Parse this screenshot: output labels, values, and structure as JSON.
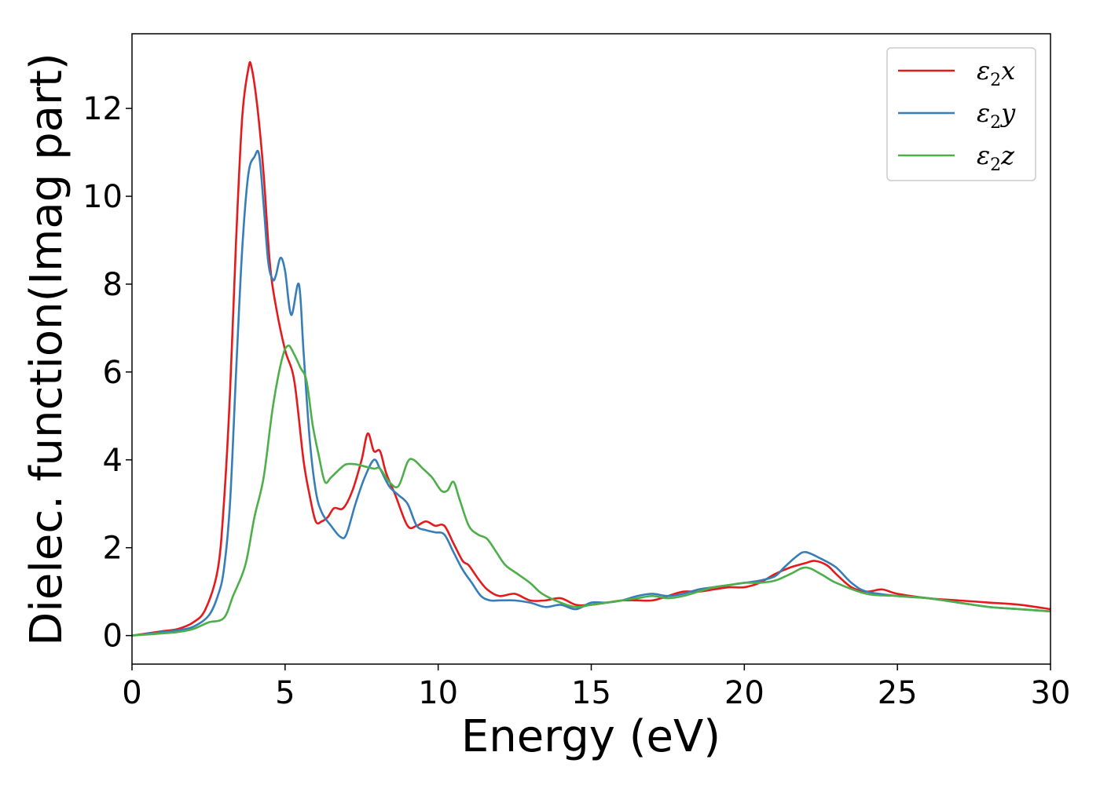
{
  "chart_data": {
    "type": "line",
    "xlabel": "Energy (eV)",
    "ylabel": "Dielec. function(Imag part)",
    "xlim": [
      0,
      30
    ],
    "ylim": [
      -0.65,
      13.7
    ],
    "xticks": [
      0,
      5,
      10,
      15,
      20,
      25,
      30
    ],
    "yticks": [
      0,
      2,
      4,
      6,
      8,
      10,
      12
    ],
    "xtick_labels": [
      "0",
      "5",
      "10",
      "15",
      "20",
      "25",
      "30"
    ],
    "ytick_labels": [
      "0",
      "2",
      "4",
      "6",
      "8",
      "10",
      "12"
    ],
    "grid": false,
    "legend_position": "top-right",
    "series": [
      {
        "name": "ε2x",
        "symbol": "ε",
        "sub": "2",
        "axis": "x",
        "color": "#e41a1c",
        "x": [
          0,
          1,
          1.5,
          2,
          2.4,
          2.8,
          3.0,
          3.2,
          3.4,
          3.6,
          3.8,
          3.9,
          4.1,
          4.3,
          4.5,
          4.7,
          5.0,
          5.3,
          5.6,
          5.8,
          6.0,
          6.2,
          6.4,
          6.6,
          6.9,
          7.2,
          7.5,
          7.7,
          7.9,
          8.1,
          8.3,
          8.6,
          9.0,
          9.3,
          9.6,
          9.9,
          10.2,
          10.5,
          10.8,
          11.0,
          11.3,
          11.6,
          12.0,
          12.5,
          13.0,
          13.5,
          14.0,
          14.5,
          15.0,
          15.5,
          16.0,
          16.5,
          17.0,
          17.5,
          18.0,
          18.5,
          19.0,
          19.5,
          20.0,
          20.5,
          21.0,
          21.5,
          22.0,
          22.3,
          22.7,
          23.0,
          23.5,
          24.0,
          24.5,
          25.0,
          26.0,
          27.0,
          28.0,
          29.0,
          30.0
        ],
        "values": [
          0,
          0.1,
          0.15,
          0.3,
          0.6,
          1.5,
          3.0,
          5.5,
          9.0,
          11.8,
          12.9,
          12.95,
          12.0,
          10.5,
          8.5,
          7.5,
          6.5,
          5.8,
          4.0,
          3.2,
          2.6,
          2.6,
          2.7,
          2.9,
          2.9,
          3.3,
          4.0,
          4.6,
          4.2,
          4.2,
          3.7,
          3.2,
          2.5,
          2.5,
          2.6,
          2.5,
          2.5,
          2.1,
          1.7,
          1.6,
          1.3,
          1.05,
          0.9,
          0.95,
          0.8,
          0.8,
          0.85,
          0.7,
          0.7,
          0.75,
          0.8,
          0.8,
          0.8,
          0.9,
          1.0,
          1.0,
          1.05,
          1.1,
          1.1,
          1.2,
          1.4,
          1.55,
          1.65,
          1.7,
          1.6,
          1.4,
          1.1,
          1.0,
          1.05,
          0.95,
          0.85,
          0.8,
          0.75,
          0.7,
          0.6
        ]
      },
      {
        "name": "ε2y",
        "symbol": "ε",
        "sub": "2",
        "axis": "y",
        "color": "#377eb8",
        "x": [
          0,
          1,
          1.5,
          2,
          2.5,
          2.8,
          3.0,
          3.2,
          3.4,
          3.6,
          3.8,
          4.0,
          4.15,
          4.3,
          4.45,
          4.6,
          4.7,
          4.85,
          5.0,
          5.2,
          5.45,
          5.6,
          5.8,
          6.0,
          6.2,
          6.5,
          6.8,
          7.0,
          7.3,
          7.6,
          7.9,
          8.1,
          8.4,
          8.7,
          9.0,
          9.3,
          9.6,
          9.9,
          10.2,
          10.5,
          10.8,
          11.1,
          11.4,
          11.7,
          12.0,
          12.5,
          13.0,
          13.5,
          14.0,
          14.5,
          15.0,
          15.5,
          16.0,
          16.5,
          17.0,
          17.5,
          18.0,
          18.5,
          19.0,
          19.5,
          20.0,
          20.5,
          21.0,
          21.3,
          21.7,
          22.0,
          22.5,
          23.0,
          23.5,
          24.0,
          25.0,
          26.0,
          27.0,
          28.0,
          29.0,
          30.0
        ],
        "values": [
          0,
          0.08,
          0.12,
          0.2,
          0.45,
          0.9,
          1.5,
          3.0,
          6.0,
          8.8,
          10.5,
          10.9,
          10.95,
          9.8,
          8.5,
          8.1,
          8.2,
          8.6,
          8.3,
          7.3,
          8.0,
          6.5,
          4.5,
          3.3,
          2.8,
          2.5,
          2.25,
          2.3,
          3.0,
          3.6,
          4.0,
          3.8,
          3.4,
          3.2,
          3.0,
          2.5,
          2.4,
          2.35,
          2.3,
          1.9,
          1.5,
          1.2,
          0.9,
          0.8,
          0.8,
          0.8,
          0.75,
          0.65,
          0.7,
          0.6,
          0.75,
          0.75,
          0.8,
          0.9,
          0.95,
          0.9,
          0.95,
          1.05,
          1.1,
          1.15,
          1.2,
          1.25,
          1.35,
          1.55,
          1.8,
          1.9,
          1.75,
          1.55,
          1.2,
          1.0,
          0.9,
          0.85,
          0.75,
          0.65,
          0.6,
          0.55
        ]
      },
      {
        "name": "ε2z",
        "symbol": "ε",
        "sub": "2",
        "axis": "z",
        "color": "#4daf4a",
        "x": [
          0,
          1,
          1.5,
          2,
          2.5,
          3.0,
          3.3,
          3.7,
          4.0,
          4.3,
          4.6,
          4.9,
          5.1,
          5.3,
          5.5,
          5.7,
          5.9,
          6.1,
          6.3,
          6.5,
          6.8,
          7.0,
          7.3,
          7.6,
          7.9,
          8.1,
          8.4,
          8.7,
          9.0,
          9.2,
          9.5,
          9.8,
          10.1,
          10.3,
          10.5,
          10.7,
          11.0,
          11.3,
          11.6,
          11.9,
          12.2,
          12.6,
          13.0,
          13.4,
          14.0,
          14.5,
          15.0,
          15.5,
          16.0,
          16.5,
          17.0,
          17.5,
          18.0,
          18.5,
          19.0,
          19.5,
          20.0,
          20.5,
          21.0,
          21.5,
          22.0,
          22.5,
          23.0,
          24.0,
          25.0,
          26.0,
          27.0,
          28.0,
          29.0,
          30.0
        ],
        "values": [
          0,
          0.05,
          0.08,
          0.15,
          0.3,
          0.4,
          0.9,
          1.6,
          2.7,
          3.6,
          5.2,
          6.3,
          6.6,
          6.4,
          6.1,
          5.8,
          4.8,
          4.1,
          3.5,
          3.6,
          3.8,
          3.9,
          3.9,
          3.85,
          3.8,
          3.8,
          3.5,
          3.4,
          3.95,
          4.0,
          3.8,
          3.6,
          3.3,
          3.3,
          3.5,
          3.1,
          2.5,
          2.3,
          2.2,
          1.9,
          1.6,
          1.4,
          1.2,
          0.95,
          0.75,
          0.65,
          0.7,
          0.75,
          0.8,
          0.85,
          0.9,
          0.85,
          0.9,
          1.0,
          1.1,
          1.15,
          1.2,
          1.2,
          1.25,
          1.4,
          1.55,
          1.4,
          1.2,
          0.95,
          0.9,
          0.85,
          0.75,
          0.65,
          0.6,
          0.55
        ]
      }
    ]
  }
}
